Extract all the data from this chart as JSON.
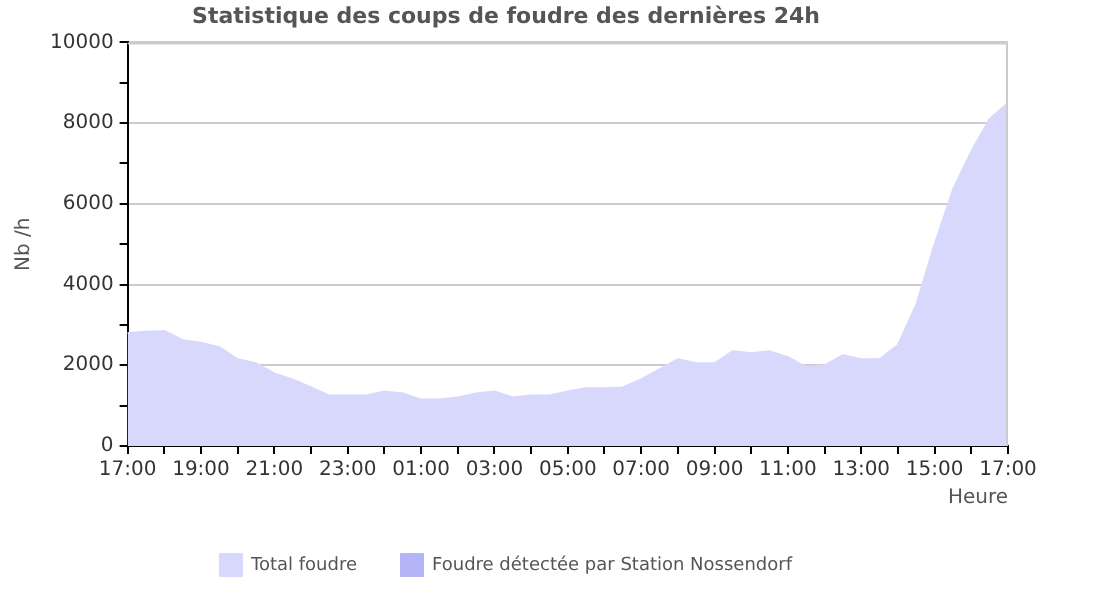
{
  "chart_data": {
    "type": "area",
    "title": "Statistique des coups de foudre des dernières 24h",
    "xlabel": "Heure",
    "ylabel": "Nb /h",
    "categories": [
      "17:00",
      null,
      null,
      null,
      "19:00",
      null,
      null,
      null,
      "21:00",
      null,
      null,
      null,
      "23:00",
      null,
      null,
      null,
      "01:00",
      null,
      null,
      null,
      "03:00",
      null,
      null,
      null,
      "05:00",
      null,
      null,
      null,
      "07:00",
      null,
      null,
      null,
      "09:00",
      null,
      null,
      null,
      "11:00",
      null,
      null,
      null,
      "13:00",
      null,
      null,
      null,
      "15:00",
      null,
      null,
      null,
      "17:00"
    ],
    "series": [
      {
        "name": "Total foudre",
        "color": "#d8d8fc",
        "values": [
          2800,
          2830,
          2850,
          2620,
          2560,
          2450,
          2150,
          2050,
          1800,
          1650,
          1450,
          1250,
          1250,
          1250,
          1350,
          1300,
          1150,
          1150,
          1200,
          1300,
          1350,
          1200,
          1250,
          1250,
          1350,
          1430,
          1430,
          1450,
          1650,
          1900,
          2150,
          2050,
          2050,
          2350,
          2300,
          2350,
          2200,
          1950,
          2000,
          2250,
          2150,
          2150,
          2500,
          3500,
          5000,
          6350,
          7300,
          8100,
          8500
        ]
      },
      {
        "name": "Foudre détectée par Station Nossendorf",
        "color": "#b4b4f8",
        "values": [
          null,
          null,
          null,
          null,
          null,
          null,
          null,
          null,
          null,
          null,
          null,
          null,
          null,
          null,
          null,
          null,
          null,
          null,
          null,
          null,
          null,
          null,
          null,
          null,
          null,
          null,
          null,
          null,
          null,
          null,
          null,
          null,
          null,
          null,
          null,
          null,
          null,
          null,
          null,
          null,
          null,
          null,
          null,
          null,
          null,
          null,
          null,
          null,
          null
        ]
      }
    ],
    "ylim": [
      0,
      10000
    ],
    "yticks": [
      0,
      {
        "value": 1000,
        "label": null
      },
      2000,
      {
        "value": 3000,
        "label": null
      },
      4000,
      {
        "value": 5000,
        "label": null
      },
      6000,
      {
        "value": 7000,
        "label": null
      },
      8000,
      {
        "value": 9000,
        "label": null
      },
      10000
    ],
    "grid": "y",
    "legend": "bottom",
    "marker": "none"
  }
}
